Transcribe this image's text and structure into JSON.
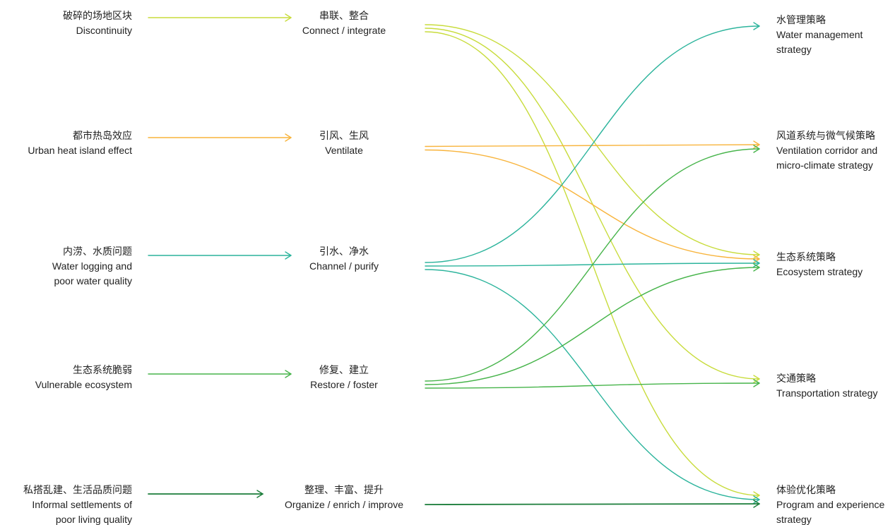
{
  "colors": {
    "lime": "#c8dc3c",
    "orange": "#f8b43c",
    "teal": "#2cb49c",
    "green": "#46b44a",
    "dark_green": "#1b7d3a"
  },
  "problems": [
    {
      "cn": "破碎的场地区块",
      "en": [
        "Discontinuity"
      ],
      "color": "lime"
    },
    {
      "cn": "都市热岛效应",
      "en": [
        "Urban heat island effect"
      ],
      "color": "orange"
    },
    {
      "cn": "内涝、水质问题",
      "en": [
        "Water logging and",
        "poor water quality"
      ],
      "color": "teal"
    },
    {
      "cn": "生态系统脆弱",
      "en": [
        "Vulnerable ecosystem"
      ],
      "color": "green"
    },
    {
      "cn": "私搭乱建、生活品质问题",
      "en": [
        "Informal settlements of",
        "poor living quality"
      ],
      "color": "dark_green"
    }
  ],
  "actions": [
    {
      "cn": "串联、整合",
      "en": "Connect / integrate"
    },
    {
      "cn": "引风、生风",
      "en": "Ventilate"
    },
    {
      "cn": "引水、净水",
      "en": "Channel / purify"
    },
    {
      "cn": "修复、建立",
      "en": "Restore / foster"
    },
    {
      "cn": "整理、丰富、提升",
      "en": "Organize / enrich / improve"
    }
  ],
  "strategies": [
    {
      "cn": "水管理策略",
      "en": [
        "Water management",
        "strategy"
      ]
    },
    {
      "cn": "风道系统与微气候策略",
      "en": [
        "Ventilation corridor and",
        "micro-climate strategy"
      ]
    },
    {
      "cn": "生态系统策略",
      "en": [
        "Ecosystem strategy"
      ]
    },
    {
      "cn": "交通策略",
      "en": [
        "Transportation strategy"
      ]
    },
    {
      "cn": "体验优化策略",
      "en": [
        "Program and experience",
        "strategy"
      ]
    }
  ],
  "links": [
    {
      "from": 0,
      "to": 2,
      "color": "lime"
    },
    {
      "from": 0,
      "to": 3,
      "color": "lime"
    },
    {
      "from": 0,
      "to": 4,
      "color": "lime"
    },
    {
      "from": 1,
      "to": 1,
      "color": "orange"
    },
    {
      "from": 1,
      "to": 2,
      "color": "orange"
    },
    {
      "from": 2,
      "to": 0,
      "color": "teal"
    },
    {
      "from": 2,
      "to": 2,
      "color": "teal"
    },
    {
      "from": 2,
      "to": 4,
      "color": "teal"
    },
    {
      "from": 3,
      "to": 1,
      "color": "green"
    },
    {
      "from": 3,
      "to": 2,
      "color": "green"
    },
    {
      "from": 3,
      "to": 3,
      "color": "green"
    },
    {
      "from": 4,
      "to": 4,
      "color": "dark_green"
    }
  ]
}
